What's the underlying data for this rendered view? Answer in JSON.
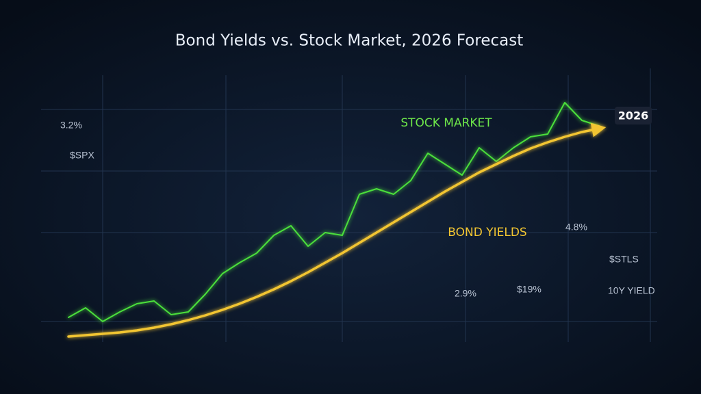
{
  "chart_data": {
    "type": "line",
    "title": "Bond Yields vs. Stock Market, 2026 Forecast",
    "categories": [
      null,
      null,
      null,
      null,
      null,
      null,
      null,
      null,
      null,
      null,
      null,
      null,
      null,
      null,
      null,
      null,
      null,
      null,
      null,
      null,
      null,
      null,
      null,
      null,
      null,
      null,
      null,
      null,
      null,
      null,
      null,
      null
    ],
    "series": [
      {
        "name": "STOCK MARKET",
        "color": "#4be03a",
        "values": [
          9,
          12.5,
          7.5,
          11,
          14,
          15,
          10,
          11,
          17.5,
          25,
          29,
          32.5,
          39,
          42.5,
          35,
          40,
          39,
          54,
          56,
          54,
          59,
          69,
          65,
          61,
          71,
          66,
          71,
          75,
          76,
          87.5,
          81,
          79
        ]
      },
      {
        "name": "BOND YIELDS",
        "color": "#f2c531",
        "values": [
          2,
          2.5,
          3,
          3.5,
          4.25,
          5.25,
          6.5,
          8,
          9.75,
          11.75,
          14,
          16.5,
          19.25,
          22.25,
          25.5,
          29,
          32.5,
          36.25,
          40,
          43.75,
          47.5,
          51.25,
          55,
          58.5,
          62,
          65,
          68,
          70.75,
          73,
          75,
          76.75,
          78
        ]
      }
    ],
    "ylim": [
      0,
      100
    ],
    "annotations": [
      "3.2%",
      "$SPX",
      "2026",
      "4.8%",
      "2.9%",
      "$19%",
      "$STLS",
      "10Y YIELD"
    ]
  }
}
